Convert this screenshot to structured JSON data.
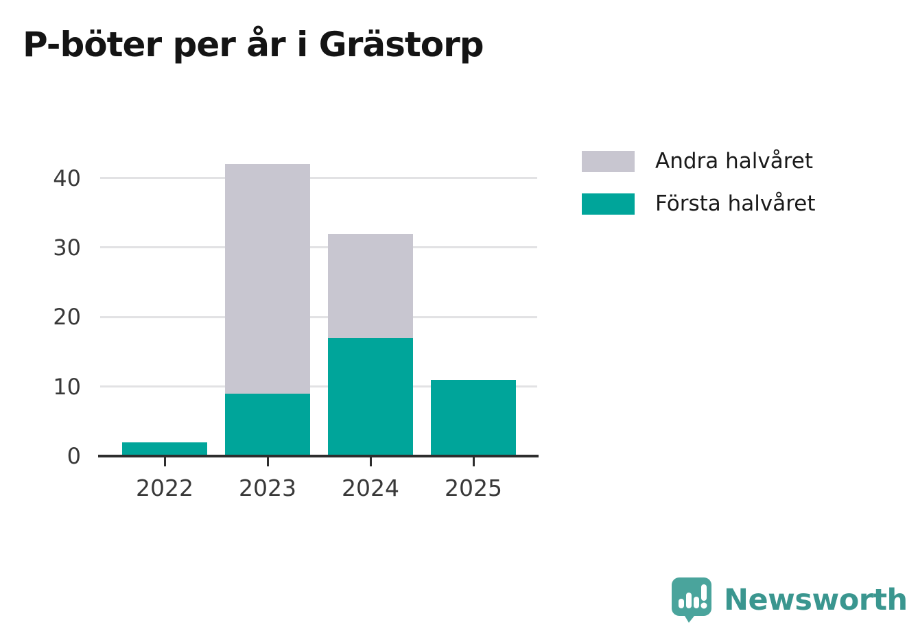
{
  "title": "P-böter per år i Grästorp",
  "chart_data": {
    "type": "bar",
    "stacked": true,
    "title": "P-böter per år i Grästorp",
    "categories": [
      "2022",
      "2023",
      "2024",
      "2025"
    ],
    "series": [
      {
        "name": "Första halvåret",
        "color": "#00a59a",
        "values": [
          2,
          9,
          17,
          11
        ]
      },
      {
        "name": "Andra halvåret",
        "color": "#c8c6d0",
        "values": [
          0,
          33,
          15,
          0
        ]
      }
    ],
    "xlabel": "",
    "ylabel": "",
    "yticks": [
      0,
      10,
      20,
      30,
      40
    ],
    "ylim": [
      0,
      44
    ],
    "grid": true,
    "legend_position": "top-right"
  },
  "legend": {
    "items": [
      {
        "label": "Andra halvåret",
        "color": "#c8c6d0"
      },
      {
        "label": "Första halvåret",
        "color": "#00a59a"
      }
    ]
  },
  "branding": {
    "wordmark": "Newsworthy",
    "logo_icon": "newsworthy-speech-bubble-chart-icon",
    "mark_color": "#4aa49c",
    "text_color": "#3a968f"
  },
  "colors": {
    "axis": "#2d2d2d",
    "gridline": "#e2e2e4",
    "tick_text": "#383838",
    "title_text": "#141414"
  }
}
